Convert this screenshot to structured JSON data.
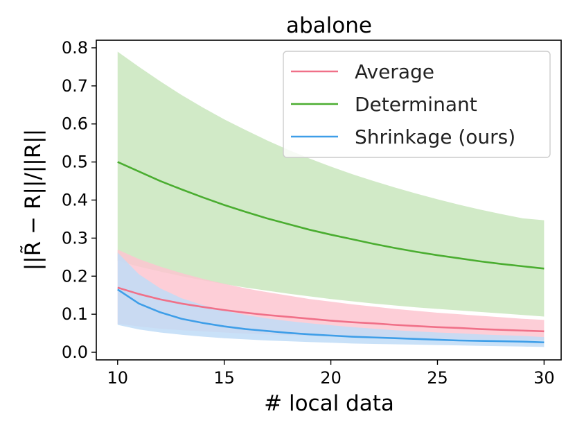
{
  "chart_data": {
    "type": "line",
    "title": "abalone",
    "xlabel": "# local data",
    "ylabel": "||R̃ − R||/||R||",
    "xlim": [
      9.0,
      30.8
    ],
    "ylim": [
      -0.02,
      0.82
    ],
    "xticks": [
      10,
      15,
      20,
      25,
      30
    ],
    "yticks": [
      0.0,
      0.1,
      0.2,
      0.3,
      0.4,
      0.5,
      0.6,
      0.7,
      0.8
    ],
    "ytick_labels": [
      "0.0",
      "0.1",
      "0.2",
      "0.3",
      "0.4",
      "0.5",
      "0.6",
      "0.7",
      "0.8"
    ],
    "legend_position": "top-right",
    "x": [
      10,
      11,
      12,
      13,
      14,
      15,
      16,
      17,
      18,
      19,
      20,
      21,
      22,
      23,
      24,
      25,
      26,
      27,
      28,
      29,
      30
    ],
    "series": [
      {
        "name": "Average",
        "color": "#f07088",
        "band_color": "#fdc6d0",
        "values": [
          0.17,
          0.153,
          0.139,
          0.128,
          0.119,
          0.111,
          0.104,
          0.098,
          0.093,
          0.088,
          0.083,
          0.079,
          0.076,
          0.072,
          0.069,
          0.066,
          0.064,
          0.061,
          0.059,
          0.057,
          0.055
        ],
        "upper": [
          0.27,
          0.245,
          0.225,
          0.208,
          0.193,
          0.18,
          0.168,
          0.158,
          0.149,
          0.14,
          0.133,
          0.126,
          0.12,
          0.114,
          0.109,
          0.104,
          0.1,
          0.096,
          0.092,
          0.088,
          0.085
        ],
        "lower": [
          0.075,
          0.068,
          0.062,
          0.058,
          0.055,
          0.052,
          0.049,
          0.047,
          0.045,
          0.043,
          0.041,
          0.04,
          0.039,
          0.038,
          0.037,
          0.036,
          0.035,
          0.034,
          0.034,
          0.033,
          0.032
        ]
      },
      {
        "name": "Determinant",
        "color": "#4aad30",
        "band_color": "#c9e6bd",
        "values": [
          0.5,
          0.475,
          0.45,
          0.428,
          0.407,
          0.387,
          0.369,
          0.352,
          0.337,
          0.322,
          0.309,
          0.297,
          0.285,
          0.274,
          0.264,
          0.255,
          0.247,
          0.239,
          0.232,
          0.226,
          0.22
        ],
        "upper": [
          0.79,
          0.75,
          0.712,
          0.676,
          0.643,
          0.612,
          0.584,
          0.557,
          0.532,
          0.509,
          0.488,
          0.468,
          0.45,
          0.433,
          0.417,
          0.402,
          0.388,
          0.375,
          0.363,
          0.352,
          0.347
        ],
        "lower": [
          0.24,
          0.225,
          0.212,
          0.2,
          0.189,
          0.179,
          0.17,
          0.162,
          0.154,
          0.147,
          0.14,
          0.134,
          0.128,
          0.123,
          0.118,
          0.114,
          0.11,
          0.106,
          0.102,
          0.098,
          0.094
        ]
      },
      {
        "name": "Shrinkage (ours)",
        "color": "#3e9ee8",
        "band_color": "#bfdcf7",
        "values": [
          0.165,
          0.128,
          0.105,
          0.088,
          0.077,
          0.068,
          0.061,
          0.056,
          0.051,
          0.047,
          0.044,
          0.041,
          0.039,
          0.037,
          0.035,
          0.033,
          0.031,
          0.03,
          0.029,
          0.028,
          0.026
        ],
        "upper": [
          0.262,
          0.205,
          0.168,
          0.142,
          0.124,
          0.11,
          0.098,
          0.089,
          0.082,
          0.076,
          0.071,
          0.066,
          0.062,
          0.058,
          0.055,
          0.052,
          0.05,
          0.047,
          0.045,
          0.043,
          0.04
        ],
        "lower": [
          0.072,
          0.06,
          0.052,
          0.046,
          0.041,
          0.037,
          0.034,
          0.031,
          0.029,
          0.027,
          0.025,
          0.023,
          0.022,
          0.021,
          0.02,
          0.019,
          0.018,
          0.017,
          0.016,
          0.015,
          0.014
        ]
      }
    ]
  }
}
